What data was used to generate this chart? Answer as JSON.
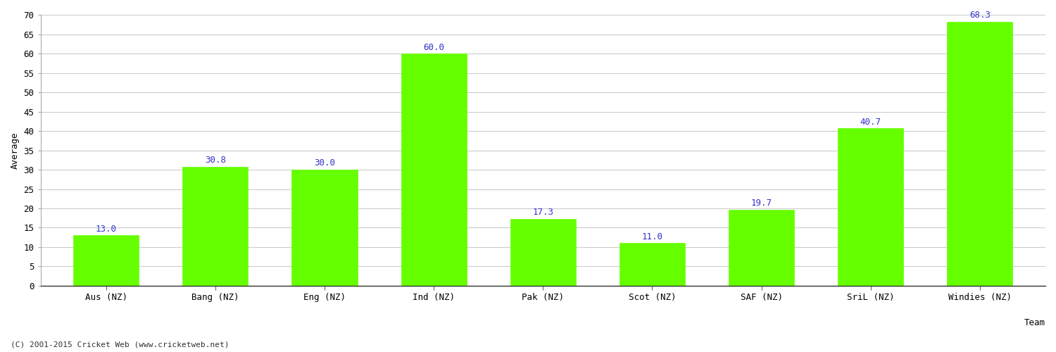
{
  "categories": [
    "Aus (NZ)",
    "Bang (NZ)",
    "Eng (NZ)",
    "Ind (NZ)",
    "Pak (NZ)",
    "Scot (NZ)",
    "SAF (NZ)",
    "SriL (NZ)",
    "Windies (NZ)"
  ],
  "values": [
    13.0,
    30.8,
    30.0,
    60.0,
    17.3,
    11.0,
    19.7,
    40.7,
    68.3
  ],
  "bar_color": "#66ff00",
  "bar_edge_color": "#66ff00",
  "label_color": "#3333cc",
  "xlabel": "Team",
  "ylabel": "Average",
  "ylim": [
    0,
    70
  ],
  "yticks": [
    0,
    5,
    10,
    15,
    20,
    25,
    30,
    35,
    40,
    45,
    50,
    55,
    60,
    65,
    70
  ],
  "grid_color": "#cccccc",
  "plot_bg_color": "#ffffff",
  "fig_bg_color": "#ffffff",
  "footer": "(C) 2001-2015 Cricket Web (www.cricketweb.net)",
  "label_fontsize": 9,
  "axis_label_fontsize": 9,
  "tick_fontsize": 9,
  "footer_fontsize": 8,
  "bar_width": 0.6
}
